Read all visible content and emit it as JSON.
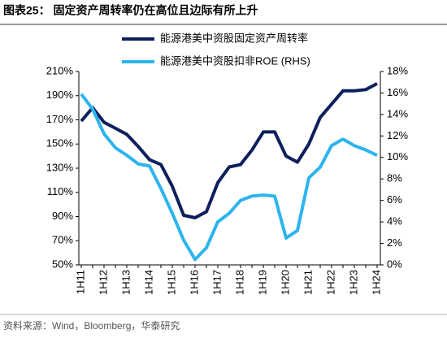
{
  "chart_data": {
    "type": "line",
    "title": "图表25： 固定资产周转率仍在高位且边际有所上升",
    "source": "资料来源：Wind，Bloomberg，华泰研究",
    "categories": [
      "1H11",
      null,
      "1H12",
      null,
      "1H13",
      null,
      "1H14",
      null,
      "1H15",
      null,
      "1H16",
      null,
      "1H17",
      null,
      "1H18",
      null,
      "1H19",
      null,
      "1H20",
      null,
      "1H21",
      null,
      "1H22",
      null,
      "1H23",
      null,
      "1H24"
    ],
    "series": [
      {
        "name": "能源港美中资股固定资产周转率",
        "color": "#0d1f5c",
        "axis": "y",
        "values": [
          169,
          180,
          168,
          163,
          158,
          148,
          137,
          133,
          115,
          91,
          89,
          94,
          118,
          131,
          133,
          145,
          160,
          160,
          140,
          135,
          150,
          172,
          183,
          194,
          194,
          195,
          200
        ]
      },
      {
        "name": "能源港美中资股扣非ROE (RHS)",
        "color": "#2db4ee",
        "axis": "y2",
        "values": [
          15.9,
          14.5,
          12.2,
          10.9,
          10.2,
          9.4,
          9.2,
          7.1,
          4.8,
          2.3,
          0.5,
          1.6,
          4.0,
          4.8,
          6.0,
          6.4,
          6.5,
          6.4,
          2.5,
          3.2,
          8.1,
          9.1,
          11.1,
          11.7,
          11.1,
          10.7,
          10.2
        ]
      }
    ],
    "ylim": [
      50,
      210
    ],
    "yticks": [
      {
        "value": 50,
        "label": "50%"
      },
      {
        "value": 70,
        "label": "70%"
      },
      {
        "value": 90,
        "label": "90%"
      },
      {
        "value": 110,
        "label": "110%"
      },
      {
        "value": 130,
        "label": "130%"
      },
      {
        "value": 150,
        "label": "150%"
      },
      {
        "value": 170,
        "label": "170%"
      },
      {
        "value": 190,
        "label": "190%"
      },
      {
        "value": 210,
        "label": "210%"
      }
    ],
    "y2lim": [
      0,
      18
    ],
    "y2ticks": [
      {
        "value": 0,
        "label": "0%"
      },
      {
        "value": 2,
        "label": "2%"
      },
      {
        "value": 4,
        "label": "4%"
      },
      {
        "value": 6,
        "label": "6%"
      },
      {
        "value": 8,
        "label": "8%"
      },
      {
        "value": 10,
        "label": "10%"
      },
      {
        "value": 12,
        "label": "12%"
      },
      {
        "value": 14,
        "label": "14%"
      },
      {
        "value": 16,
        "label": "16%"
      },
      {
        "value": 18,
        "label": "18%"
      }
    ],
    "grid": false
  }
}
